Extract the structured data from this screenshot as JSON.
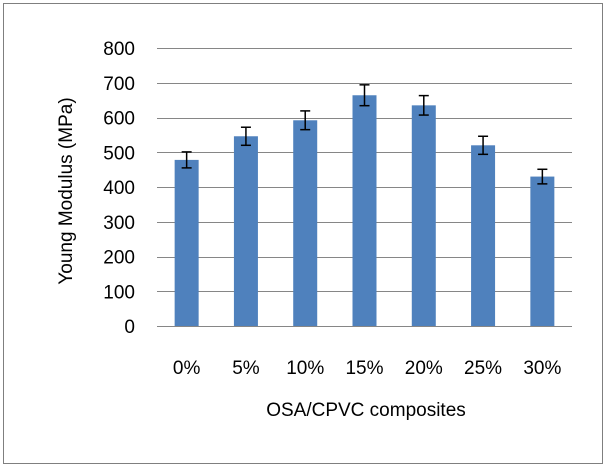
{
  "chart_data": {
    "type": "bar",
    "title": "",
    "xlabel": "OSA/CPVC composites",
    "ylabel": "Young Modulus (MPa)",
    "categories": [
      "0%",
      "5%",
      "10%",
      "15%",
      "20%",
      "25%",
      "30%"
    ],
    "values": [
      478,
      546,
      592,
      664,
      635,
      520,
      430
    ],
    "errors": [
      23,
      26,
      27,
      30,
      28,
      26,
      21
    ],
    "ylim": [
      0,
      800
    ],
    "yticks": [
      0,
      100,
      200,
      300,
      400,
      500,
      600,
      700,
      800
    ],
    "grid": true,
    "legend": "none",
    "colors": {
      "bar": "#4f81bd",
      "grid": "#868686",
      "error": "#000000"
    }
  }
}
